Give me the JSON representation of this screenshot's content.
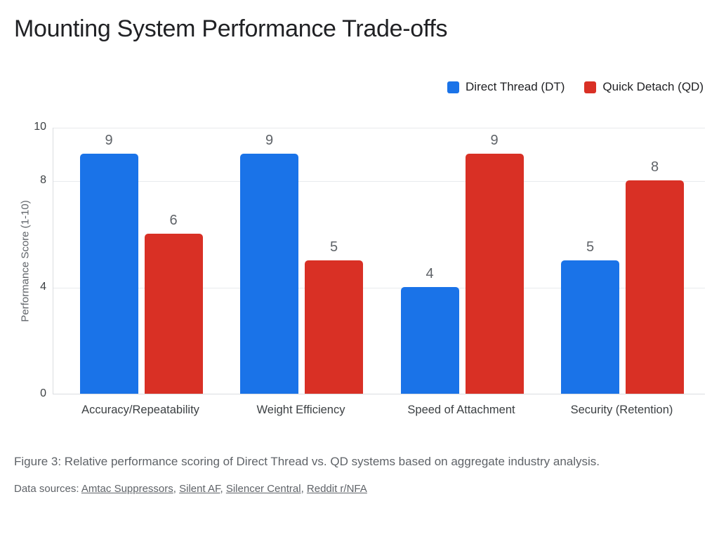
{
  "page": {
    "title": "Mounting System Performance Trade-offs",
    "caption": "Figure 3: Relative performance scoring of Direct Thread vs. QD systems based on aggregate industry analysis.",
    "sources_label": "Data sources:",
    "sources": [
      "Amtac Suppressors",
      "Silent AF",
      "Silencer Central",
      "Reddit r/NFA"
    ]
  },
  "chart_data": {
    "type": "bar",
    "title": "Mounting System Performance Trade-offs",
    "categories": [
      "Accuracy/Repeatability",
      "Weight Efficiency",
      "Speed of Attachment",
      "Security (Retention)"
    ],
    "series": [
      {
        "name": "Direct Thread (DT)",
        "color": "#1a73e8",
        "values": [
          9,
          9,
          4,
          5
        ]
      },
      {
        "name": "Quick Detach (QD)",
        "color": "#d93025",
        "values": [
          6,
          5,
          9,
          8
        ]
      }
    ],
    "xlabel": "",
    "ylabel": "Performance Score (1-10)",
    "ylim": [
      0,
      10
    ],
    "yticks": [
      0,
      4,
      8,
      10
    ],
    "grid": true,
    "legend_position": "top-right",
    "bar_value_labels": true
  }
}
